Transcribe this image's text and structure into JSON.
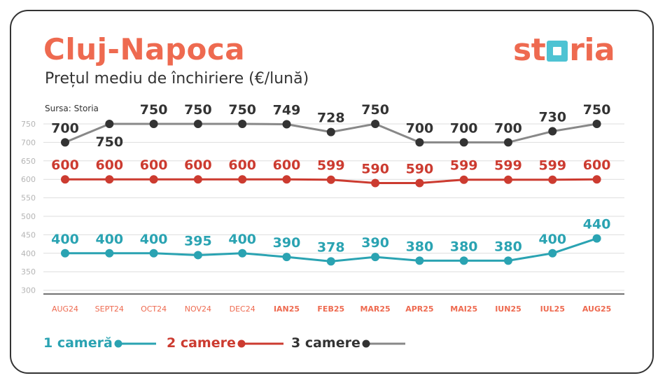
{
  "title": "Cluj-Napoca",
  "subtitle": "Prețul mediu de închiriere (€/lună)",
  "source": "Sursa: Storia",
  "logo": "storia",
  "chart_data": {
    "type": "line",
    "categories": [
      "AUG24",
      "SEPT24",
      "OCT24",
      "NOV24",
      "DEC24",
      "IAN25",
      "FEB25",
      "MAR25",
      "APR25",
      "MAI25",
      "IUN25",
      "IUL25",
      "AUG25"
    ],
    "y_ticks": [
      750,
      700,
      650,
      600,
      550,
      500,
      450,
      400,
      350,
      300
    ],
    "ylim": [
      300,
      750
    ],
    "grid": true,
    "legend_position": "bottom",
    "series": [
      {
        "name": "1 cameră",
        "color": "#2aa3b2",
        "values": [
          400,
          400,
          400,
          395,
          400,
          390,
          378,
          390,
          380,
          380,
          380,
          400,
          440
        ]
      },
      {
        "name": "2 camere",
        "color": "#cc3b30",
        "values": [
          600,
          600,
          600,
          600,
          600,
          600,
          599,
          590,
          590,
          599,
          599,
          599,
          600
        ]
      },
      {
        "name": "3 camere",
        "color": "#333333",
        "line_color": "#888888",
        "values": [
          700,
          750,
          750,
          750,
          750,
          749,
          728,
          750,
          700,
          700,
          700,
          730,
          750
        ]
      }
    ]
  }
}
